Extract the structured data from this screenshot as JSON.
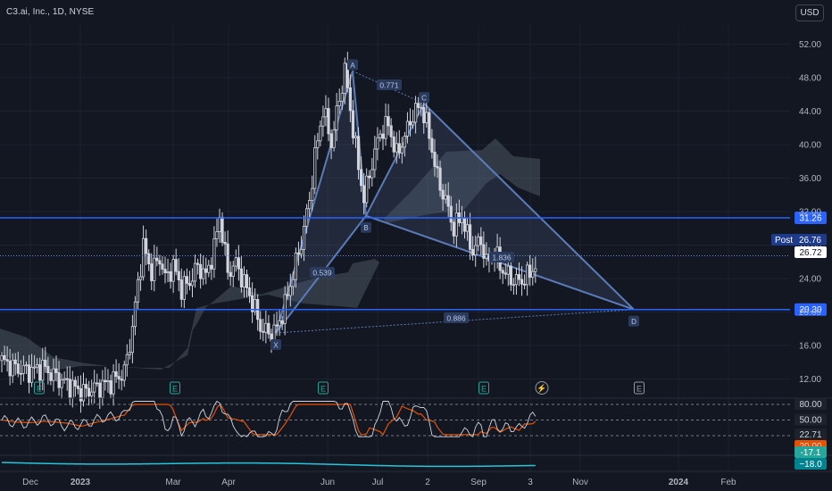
{
  "header": {
    "symbol_title": "C3.ai, Inc., 1D, NYSE",
    "currency_label": "USD"
  },
  "colors": {
    "background": "#131722",
    "grid": "#1e222d",
    "candle": "#d1d4dc",
    "harmonic_line": "#5b7cb8",
    "harmonic_fill": "#4a5f85",
    "cloud_fill": "#6b7785",
    "hline": "#2962ff",
    "hline_label": "#2962ff",
    "price_line": "#6b8ae6",
    "osc_fast": "#d1d4dc",
    "osc_slow": "#e65100",
    "osc_fill_over": "#26a69a",
    "osc_fill_under": "#ef5350",
    "bottom_line": "#26c6da",
    "axis_text": "#b2b5be"
  },
  "chart_data": {
    "type": "candlestick",
    "y_axis_ticks": [
      "52.00",
      "48.00",
      "44.00",
      "40.00",
      "36.00",
      "32.00",
      "28.00",
      "24.00",
      "20.00",
      "16.00",
      "12.00"
    ],
    "x_axis_ticks": [
      "Dec",
      "2023",
      "Mar",
      "Apr",
      "Jun",
      "Jul",
      "2",
      "Sep",
      "3",
      "Nov",
      "2024",
      "Feb"
    ],
    "ylim": [
      9,
      54
    ],
    "candles_close_trend": [
      [
        0,
        14.2
      ],
      [
        5,
        13.3
      ],
      [
        10,
        12.9
      ],
      [
        15,
        13.4
      ],
      [
        20,
        12.2
      ],
      [
        25,
        11.2
      ],
      [
        30,
        10.4
      ],
      [
        35,
        11.0
      ],
      [
        40,
        11.6
      ],
      [
        45,
        12.8
      ],
      [
        48,
        18.0
      ],
      [
        50,
        23.5
      ],
      [
        52,
        27.8
      ],
      [
        55,
        24.8
      ],
      [
        58,
        26.5
      ],
      [
        60,
        24.0
      ],
      [
        63,
        25.5
      ],
      [
        66,
        22.8
      ],
      [
        69,
        23.6
      ],
      [
        72,
        25.5
      ],
      [
        75,
        24.3
      ],
      [
        78,
        27.6
      ],
      [
        80,
        31.5
      ],
      [
        83,
        24.7
      ],
      [
        86,
        25.8
      ],
      [
        89,
        23.5
      ],
      [
        92,
        21.2
      ],
      [
        95,
        18.2
      ],
      [
        98,
        17.4
      ],
      [
        101,
        18.0
      ],
      [
        104,
        20.8
      ],
      [
        107,
        24.6
      ],
      [
        110,
        28.3
      ],
      [
        113,
        33.4
      ],
      [
        115,
        38.5
      ],
      [
        118,
        44.3
      ],
      [
        121,
        40.2
      ],
      [
        124,
        45.4
      ],
      [
        126,
        48.9
      ],
      [
        128,
        44.2
      ],
      [
        131,
        37.3
      ],
      [
        133,
        33.6
      ],
      [
        136,
        37.8
      ],
      [
        139,
        41.5
      ],
      [
        142,
        42.4
      ],
      [
        145,
        38.7
      ],
      [
        148,
        41.0
      ],
      [
        151,
        43.6
      ],
      [
        154,
        44.7
      ],
      [
        157,
        41.2
      ],
      [
        160,
        36.0
      ],
      [
        163,
        33.3
      ],
      [
        166,
        30.0
      ],
      [
        169,
        31.5
      ],
      [
        171,
        29.0
      ],
      [
        173,
        27.3
      ],
      [
        176,
        28.6
      ],
      [
        178,
        25.8
      ],
      [
        181,
        26.9
      ],
      [
        184,
        25.0
      ],
      [
        187,
        24.0
      ],
      [
        190,
        23.6
      ],
      [
        193,
        24.2
      ],
      [
        196,
        25.6
      ]
    ],
    "horizontal_levels": [
      {
        "price": 31.26,
        "label": "31.26"
      },
      {
        "price": 20.3,
        "label": "20.30"
      }
    ],
    "price_labels": [
      {
        "label": "Post",
        "value": "26.76"
      },
      {
        "label": "",
        "value": "26.72"
      }
    ],
    "harmonic_pattern": {
      "points": [
        {
          "name": "X",
          "price": 17.5
        },
        {
          "name": "A",
          "price": 48.8
        },
        {
          "name": "B",
          "price": 31.5
        },
        {
          "name": "C",
          "price": 44.9
        },
        {
          "name": "D",
          "price": 20.3
        }
      ],
      "ratios": [
        "0.771",
        "0.539",
        "1.836",
        "0.886"
      ]
    },
    "earnings_markers": [
      "E",
      "E",
      "E",
      "E",
      "E"
    ],
    "dividend_marker": "⚡",
    "oscillator": {
      "levels": [
        "80.00",
        "50.00",
        "20.00"
      ],
      "values": [
        "22.71",
        "20.00"
      ]
    },
    "bottom_indicator": {
      "values": [
        "-17.1",
        "−18.0"
      ]
    }
  }
}
